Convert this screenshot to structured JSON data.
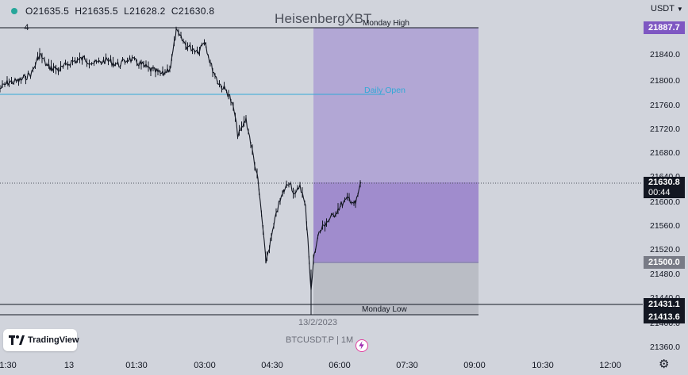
{
  "ohlc": {
    "open": "O21635.5",
    "high": "H21635.5",
    "low": "L21628.2",
    "close": "C21630.8"
  },
  "watermark": "HeisenbergXBT",
  "currency": "USDT",
  "labels": {
    "monday_high": "Monday High",
    "daily_open": "Daily Open",
    "monday_low": "Monday Low",
    "date": "13/2/2023",
    "symbol": "BTCUSDT.P | 1M",
    "left_marker": "4"
  },
  "price_tags": {
    "monday_high": {
      "value": "21887.7",
      "color": "#7e57c2"
    },
    "last": {
      "value": "21630.8",
      "countdown": "00:44",
      "color": "#131722"
    },
    "box_low": {
      "value": "21500.0",
      "color": "#787b86"
    },
    "low1": {
      "value": "21431.1",
      "color": "#131722"
    },
    "low2": {
      "value": "21413.6",
      "color": "#131722"
    }
  },
  "y_ticks": [
    "21840.0",
    "21800.0",
    "21760.0",
    "21720.0",
    "21680.0",
    "21640.0",
    "21600.0",
    "21560.0",
    "21520.0",
    "21480.0",
    "21440.0",
    "21400.0",
    "21360.0"
  ],
  "x_ticks": [
    "1:30",
    "13",
    "01:30",
    "03:00",
    "04:30",
    "06:00",
    "07:30",
    "09:00",
    "10:30",
    "12:00"
  ],
  "logo": {
    "text": "TradingView"
  },
  "colors": {
    "background": "#d1d4dc",
    "upper_zone": "#b2a7d5",
    "lower_zone": "#a08ccd",
    "grey_zone": "#babdc5",
    "daily_open": "#31a8d6",
    "monday_tag": "#7e57c2"
  },
  "icons": {
    "dot": "status-dot-icon",
    "settings": "gear-icon",
    "logo": "tradingview-logo-icon",
    "alert": "lightning-icon",
    "dropdown": "chevron-down-icon"
  }
}
